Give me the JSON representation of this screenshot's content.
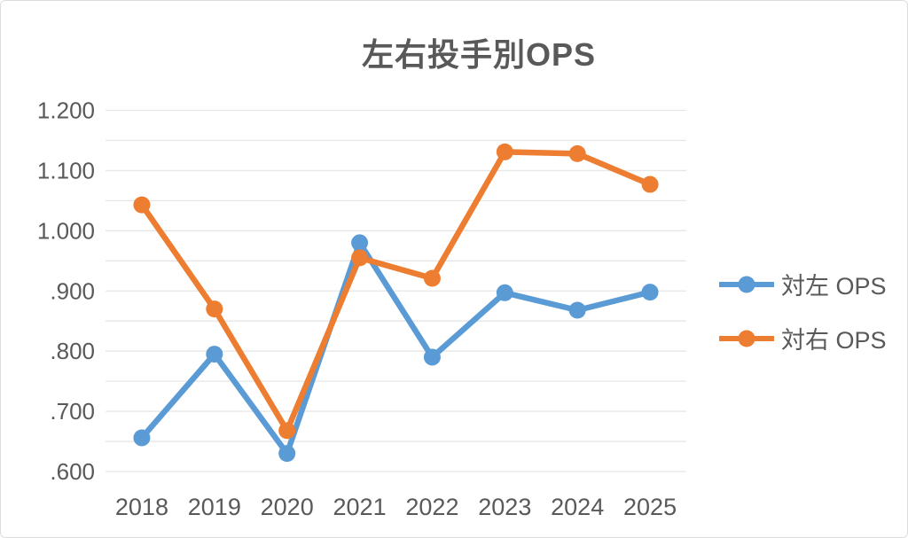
{
  "chart_data": {
    "type": "line",
    "title": "左右投手別OPS",
    "categories": [
      "2018",
      "2019",
      "2020",
      "2021",
      "2022",
      "2023",
      "2024",
      "2025"
    ],
    "series": [
      {
        "name": "対左 OPS",
        "color": "#5B9BD5",
        "values": [
          0.656,
          0.795,
          0.63,
          0.98,
          0.79,
          0.897,
          0.868,
          0.898
        ]
      },
      {
        "name": "対右 OPS",
        "color": "#ED7D31",
        "values": [
          1.043,
          0.87,
          0.668,
          0.955,
          0.921,
          1.131,
          1.128,
          1.077
        ]
      }
    ],
    "xlabel": "",
    "ylabel": "",
    "y_axis": {
      "min": 0.6,
      "max": 1.2,
      "tick_step": 0.1,
      "gridline_step": 0.05,
      "tick_labels": [
        "1.200",
        "1.100",
        "1.000",
        ".900",
        ".800",
        ".700",
        ".600"
      ]
    },
    "grid": true,
    "legend_position": "right",
    "marker": "circle"
  },
  "style": {
    "text_color": "#595959",
    "gridline_color": "#E7E7E7",
    "background": "#FFFFFF"
  }
}
